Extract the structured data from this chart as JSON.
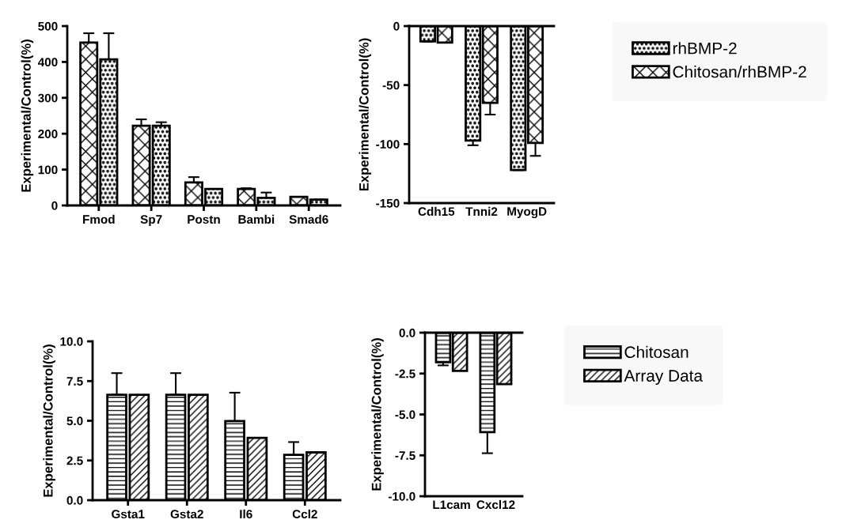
{
  "chart_data": [
    {
      "type": "bar",
      "ylabel": "Experimental/Control(%)",
      "categories": [
        "Fmod",
        "Sp7",
        "Postn",
        "Bambi",
        "Smad6"
      ],
      "ylim": [
        0,
        500
      ],
      "yticks": [
        0,
        100,
        200,
        300,
        400,
        500
      ],
      "grid": false,
      "legend": false,
      "series": [
        {
          "color": "#000000",
          "values": [
            454,
            222,
            64,
            46,
            24
          ],
          "errors": [
            [
              454,
              480
            ],
            [
              222,
              240
            ],
            [
              64,
              79
            ],
            [
              46,
              48
            ],
            null
          ]
        },
        {
          "color": "#000000",
          "values": [
            407,
            222,
            46,
            21,
            16
          ],
          "errors": [
            [
              407,
              480
            ],
            [
              222,
              232
            ],
            null,
            [
              21,
              36
            ],
            null
          ]
        }
      ]
    },
    {
      "type": "bar",
      "ylabel": "Experimental/Control(%)",
      "categories": [
        "Cdh15",
        "Tnni2",
        "MyogD"
      ],
      "ylim": [
        -150,
        0
      ],
      "yticks": [
        -150,
        -100,
        -50,
        0
      ],
      "grid": false,
      "legend": "right",
      "series": [
        {
          "name": "rhBMP-2",
          "color": "#000000",
          "values": [
            -13,
            -97,
            -122
          ],
          "errors": [
            null,
            [
              -101,
              -97
            ],
            null
          ]
        },
        {
          "name": "Chitosan/rhBMP-2",
          "color": "#000000",
          "values": [
            -14,
            -65,
            -99
          ],
          "errors": [
            null,
            [
              -75,
              -65
            ],
            [
              -110,
              -99
            ]
          ]
        }
      ]
    },
    {
      "type": "bar",
      "ylabel": "Experimental/Control(%)",
      "categories": [
        "Gsta1",
        "Gsta2",
        "Il6",
        "Ccl2"
      ],
      "ylim": [
        0,
        10
      ],
      "yticks": [
        {
          "value": 0,
          "label": "0.0"
        },
        2.5,
        {
          "value": 5,
          "label": "5.0"
        },
        7.5,
        {
          "value": 10,
          "label": "10.0"
        }
      ],
      "grid": false,
      "legend": false,
      "series": [
        {
          "color": "#000000",
          "values": [
            6.64,
            6.64,
            4.98,
            2.85
          ],
          "errors": [
            [
              6.64,
              8.0
            ],
            [
              6.64,
              8.0
            ],
            [
              4.98,
              6.77
            ],
            [
              2.85,
              3.66
            ]
          ]
        },
        {
          "color": "#000000",
          "values": [
            6.64,
            6.64,
            3.92,
            3.01
          ]
        }
      ]
    },
    {
      "type": "bar",
      "ylabel": "Experimental/Control(%)",
      "categories": [
        "L1cam",
        "Cxcl12"
      ],
      "ylim": [
        -10,
        0
      ],
      "yticks": [
        {
          "value": -10,
          "label": "-10.0"
        },
        -7.5,
        {
          "value": -5,
          "label": "-5.0"
        },
        -2.5,
        {
          "value": 0,
          "label": "0.0"
        }
      ],
      "grid": false,
      "legend": "right",
      "series": [
        {
          "name": "Chitosan",
          "color": "#000000",
          "values": [
            -1.8,
            -6.08
          ],
          "errors": [
            [
              -2.0,
              -1.8
            ],
            [
              -7.37,
              -6.08
            ]
          ]
        },
        {
          "name": "Array Data",
          "color": "#000000",
          "values": [
            -2.34,
            -3.15
          ]
        }
      ]
    }
  ]
}
